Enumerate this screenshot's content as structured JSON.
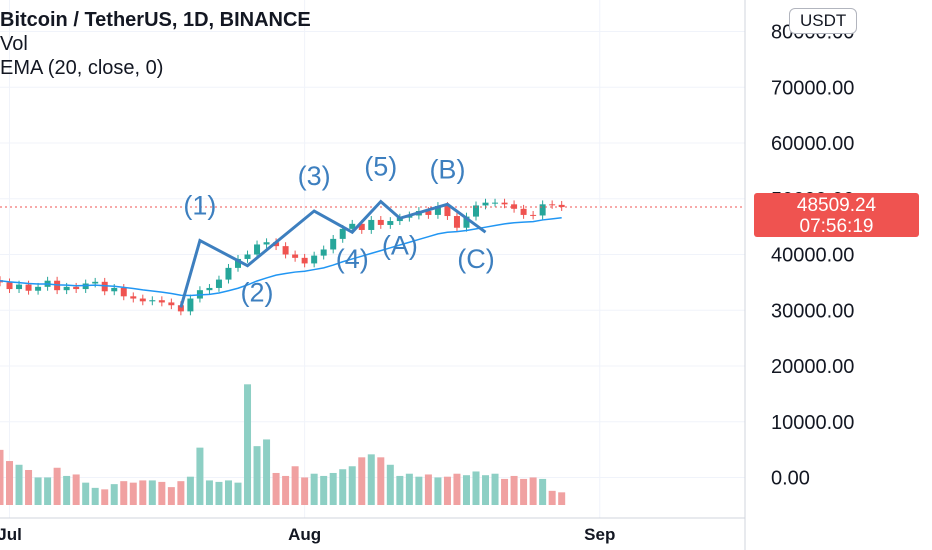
{
  "legend": {
    "title": "Bitcoin / TetherUS, 1D, BINANCE",
    "vol": "Vol",
    "ema": "EMA (20, close, 0)"
  },
  "symbol_badge": "USDT",
  "last_price": {
    "value": "48509.24",
    "countdown": "07:56:19"
  },
  "colors": {
    "up": "#26a69a",
    "down": "#ef5350",
    "vol_up": "#8dcfc4",
    "vol_down": "#f0a1a1",
    "ema": "#2196f3",
    "wave": "#3d7fbf",
    "text": "#131722",
    "grid": "#f0f3fa"
  },
  "chart_data": {
    "type": "candlestick",
    "title": "Bitcoin / TetherUS, 1D, BINANCE",
    "xlabel": "",
    "ylabel": "",
    "ylim": [
      -4000,
      82000
    ],
    "x_ticks": [
      "Jul",
      "Aug",
      "Sep"
    ],
    "y_ticks": [
      "80000.00",
      "70000.00",
      "60000.00",
      "50000.00",
      "40000.00",
      "30000.00",
      "20000.00",
      "10000.00",
      "0.00"
    ],
    "start_date": "2021-06-30",
    "closes": [
      35000,
      33800,
      34600,
      33500,
      34200,
      35300,
      33600,
      34200,
      33800,
      34800,
      35100,
      33400,
      34000,
      32500,
      32100,
      31600,
      31800,
      31400,
      30900,
      29800,
      32100,
      33600,
      34000,
      35500,
      37600,
      39200,
      40000,
      41800,
      42200,
      41500,
      40000,
      39400,
      38400,
      39800,
      40900,
      42800,
      44600,
      45500,
      44400,
      46200,
      45300,
      46000,
      46600,
      47000,
      47800,
      47100,
      48700,
      46900,
      44800,
      46800,
      48800,
      49300,
      49300,
      49000,
      48200,
      47100,
      47000,
      49000,
      48900,
      48509
    ],
    "volume": [
      7400,
      5900,
      5400,
      4700,
      3700,
      3700,
      5000,
      3900,
      4100,
      3000,
      2300,
      2100,
      2800,
      3200,
      3000,
      3300,
      3300,
      3100,
      2400,
      3200,
      3800,
      7700,
      3300,
      3100,
      3300,
      3000,
      16200,
      7900,
      8800,
      4300,
      3900,
      5200,
      3700,
      4200,
      3900,
      4300,
      4800,
      5200,
      6400,
      6800,
      6400,
      5400,
      3900,
      4200,
      3800,
      4100,
      3700,
      3800,
      4200,
      4000,
      4500,
      4000,
      4200,
      3500,
      3900,
      3500,
      3700,
      3500,
      1900,
      1700
    ],
    "ema": [
      35300,
      35100,
      34950,
      34800,
      34700,
      34700,
      34550,
      34500,
      34400,
      34450,
      34500,
      34400,
      34300,
      34100,
      33900,
      33650,
      33450,
      33250,
      33000,
      32700,
      32650,
      32750,
      32850,
      33100,
      33500,
      33950,
      34550,
      35250,
      35800,
      36300,
      36600,
      36850,
      37000,
      37300,
      37600,
      38100,
      38700,
      39200,
      39700,
      40200,
      40700,
      41200,
      41700,
      42200,
      42700,
      43200,
      43700,
      44000,
      44100,
      44300,
      44600,
      44900,
      45200,
      45500,
      45700,
      45800,
      45900,
      46200,
      46400,
      46600
    ],
    "waves": [
      {
        "label": "(1)",
        "x": 21,
        "y": 42500
      },
      {
        "label": "(2)",
        "x": 26,
        "y": 38000
      },
      {
        "label": "(3)",
        "x": 33,
        "y": 47800
      },
      {
        "label": "(4)",
        "x": 37,
        "y": 44000
      },
      {
        "label": "(5)",
        "x": 40,
        "y": 49500
      },
      {
        "label": "(A)",
        "x": 42,
        "y": 46500
      },
      {
        "label": "(B)",
        "x": 47,
        "y": 49000
      },
      {
        "label": "(C)",
        "x": 51,
        "y": 44000
      }
    ]
  }
}
